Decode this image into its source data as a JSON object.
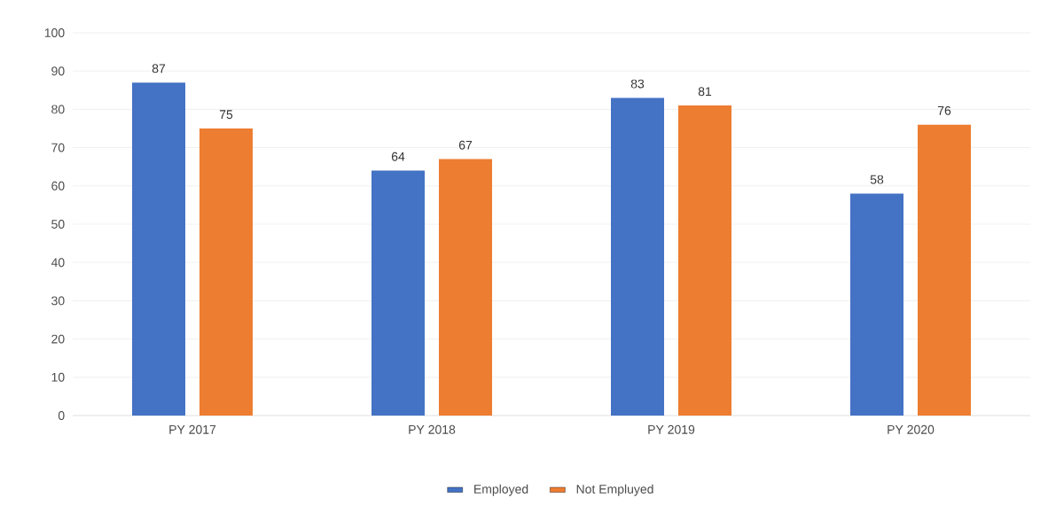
{
  "chart_data": {
    "type": "bar",
    "categories": [
      "PY 2017",
      "PY 2018",
      "PY 2019",
      "PY 2020"
    ],
    "series": [
      {
        "name": "Employed",
        "color": "#4472c4",
        "values": [
          87,
          64,
          83,
          58
        ]
      },
      {
        "name": "Not Empluyed",
        "color": "#ed7d31",
        "values": [
          75,
          67,
          81,
          76
        ]
      }
    ],
    "ylim": [
      0,
      100
    ],
    "yticks": [
      0,
      10,
      20,
      30,
      40,
      50,
      60,
      70,
      80,
      90,
      100
    ],
    "grid": "y",
    "legend": "bottom",
    "data_labels": true
  }
}
